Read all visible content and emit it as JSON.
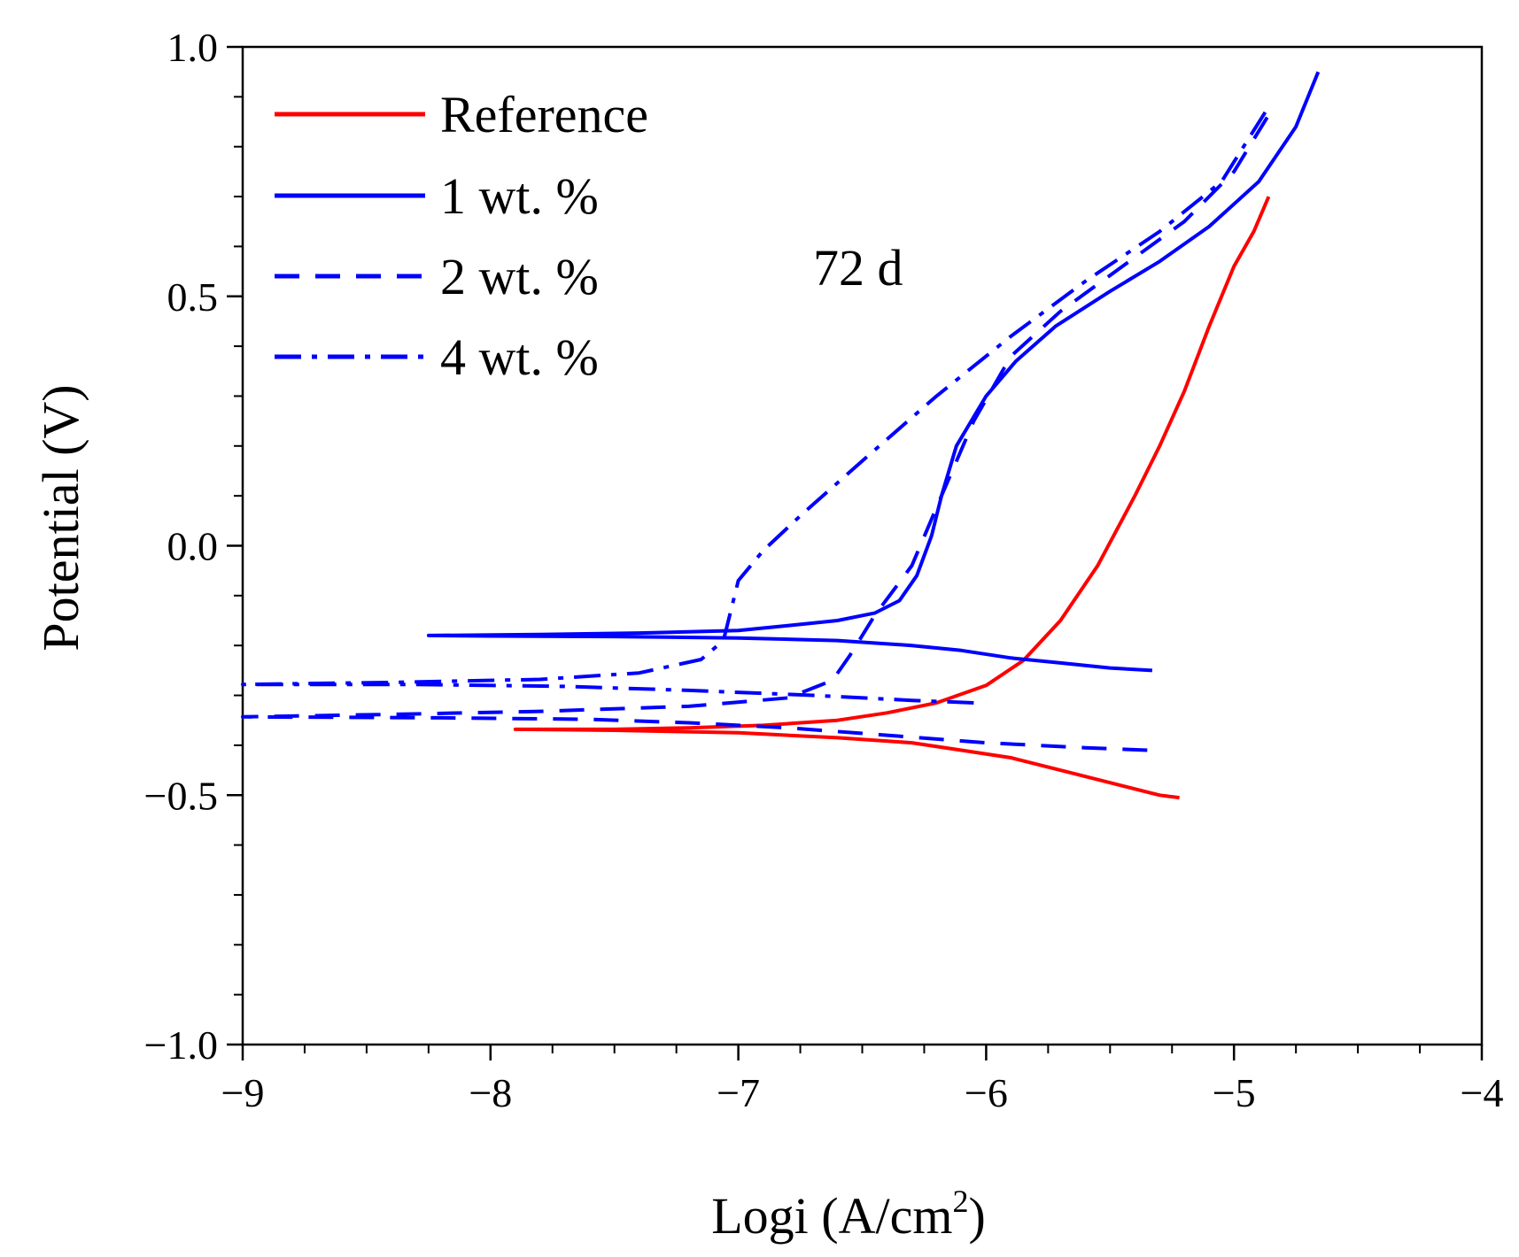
{
  "chart_data": {
    "type": "line",
    "title": "",
    "xlabel": "Logi (A/cm",
    "xlabel_superscript": "2",
    "xlabel_suffix": ")",
    "ylabel": "Potential (V)",
    "xlim": [
      -9,
      -4
    ],
    "ylim": [
      -1.0,
      1.0
    ],
    "x_ticks": [
      -9,
      -8,
      -7,
      -6,
      -5,
      -4
    ],
    "x_tick_labels": [
      "−9",
      "−8",
      "−7",
      "−6",
      "−5",
      "−4"
    ],
    "y_ticks": [
      -1.0,
      -0.5,
      0.0,
      0.5,
      1.0
    ],
    "y_tick_labels": [
      "−1.0",
      "−0.5",
      "0.0",
      "0.5",
      "1.0"
    ],
    "grid": false,
    "legend_position": "top-left",
    "annotation": "72 d",
    "series": [
      {
        "name": "Reference",
        "color": "#ff0000",
        "dash": "solid",
        "points": [
          [
            -5.22,
            -0.505
          ],
          [
            -5.3,
            -0.5
          ],
          [
            -5.5,
            -0.475
          ],
          [
            -5.7,
            -0.45
          ],
          [
            -5.9,
            -0.425
          ],
          [
            -6.1,
            -0.41
          ],
          [
            -6.3,
            -0.395
          ],
          [
            -6.6,
            -0.385
          ],
          [
            -7.0,
            -0.375
          ],
          [
            -7.5,
            -0.37
          ],
          [
            -7.9,
            -0.368
          ],
          [
            -7.5,
            -0.368
          ],
          [
            -7.2,
            -0.365
          ],
          [
            -6.9,
            -0.36
          ],
          [
            -6.6,
            -0.35
          ],
          [
            -6.4,
            -0.335
          ],
          [
            -6.2,
            -0.315
          ],
          [
            -6.0,
            -0.28
          ],
          [
            -5.85,
            -0.23
          ],
          [
            -5.7,
            -0.15
          ],
          [
            -5.55,
            -0.04
          ],
          [
            -5.4,
            0.1
          ],
          [
            -5.3,
            0.2
          ],
          [
            -5.2,
            0.31
          ],
          [
            -5.1,
            0.44
          ],
          [
            -5.0,
            0.56
          ],
          [
            -4.92,
            0.63
          ],
          [
            -4.86,
            0.7
          ]
        ]
      },
      {
        "name": "1 wt. %",
        "color": "#0000ff",
        "dash": "solid",
        "points": [
          [
            -5.33,
            -0.25
          ],
          [
            -5.5,
            -0.245
          ],
          [
            -5.7,
            -0.235
          ],
          [
            -5.9,
            -0.225
          ],
          [
            -6.1,
            -0.21
          ],
          [
            -6.3,
            -0.2
          ],
          [
            -6.6,
            -0.19
          ],
          [
            -7.0,
            -0.185
          ],
          [
            -7.5,
            -0.182
          ],
          [
            -8.0,
            -0.181
          ],
          [
            -8.25,
            -0.18
          ],
          [
            -7.8,
            -0.178
          ],
          [
            -7.4,
            -0.175
          ],
          [
            -7.0,
            -0.17
          ],
          [
            -6.8,
            -0.16
          ],
          [
            -6.6,
            -0.15
          ],
          [
            -6.45,
            -0.135
          ],
          [
            -6.35,
            -0.11
          ],
          [
            -6.28,
            -0.06
          ],
          [
            -6.22,
            0.02
          ],
          [
            -6.18,
            0.1
          ],
          [
            -6.12,
            0.2
          ],
          [
            -6.0,
            0.3
          ],
          [
            -5.88,
            0.37
          ],
          [
            -5.72,
            0.44
          ],
          [
            -5.5,
            0.51
          ],
          [
            -5.3,
            0.57
          ],
          [
            -5.1,
            0.64
          ],
          [
            -4.9,
            0.73
          ],
          [
            -4.75,
            0.84
          ],
          [
            -4.66,
            0.95
          ]
        ]
      },
      {
        "name": "2 wt. %",
        "color": "#0000ff",
        "dash": "28,18",
        "points": [
          [
            -5.35,
            -0.41
          ],
          [
            -5.6,
            -0.405
          ],
          [
            -6.0,
            -0.395
          ],
          [
            -6.4,
            -0.38
          ],
          [
            -6.8,
            -0.365
          ],
          [
            -7.2,
            -0.355
          ],
          [
            -7.6,
            -0.348
          ],
          [
            -8.2,
            -0.345
          ],
          [
            -9.0,
            -0.343
          ],
          [
            -8.4,
            -0.338
          ],
          [
            -7.8,
            -0.332
          ],
          [
            -7.2,
            -0.322
          ],
          [
            -6.8,
            -0.305
          ],
          [
            -6.62,
            -0.27
          ],
          [
            -6.55,
            -0.22
          ],
          [
            -6.45,
            -0.14
          ],
          [
            -6.3,
            -0.04
          ],
          [
            -6.18,
            0.1
          ],
          [
            -6.05,
            0.25
          ],
          [
            -5.9,
            0.38
          ],
          [
            -5.7,
            0.47
          ],
          [
            -5.45,
            0.56
          ],
          [
            -5.2,
            0.65
          ],
          [
            -5.0,
            0.75
          ],
          [
            -4.84,
            0.88
          ]
        ]
      },
      {
        "name": "4 wt. %",
        "color": "#0000ff",
        "dash": "30,12,6,12",
        "points": [
          [
            -6.05,
            -0.315
          ],
          [
            -6.3,
            -0.31
          ],
          [
            -6.7,
            -0.3
          ],
          [
            -7.2,
            -0.29
          ],
          [
            -7.7,
            -0.282
          ],
          [
            -8.3,
            -0.278
          ],
          [
            -9.0,
            -0.278
          ],
          [
            -8.4,
            -0.274
          ],
          [
            -7.8,
            -0.268
          ],
          [
            -7.4,
            -0.255
          ],
          [
            -7.15,
            -0.228
          ],
          [
            -7.06,
            -0.19
          ],
          [
            -7.03,
            -0.13
          ],
          [
            -7.0,
            -0.07
          ],
          [
            -6.9,
            -0.01
          ],
          [
            -6.75,
            0.06
          ],
          [
            -6.5,
            0.17
          ],
          [
            -6.2,
            0.3
          ],
          [
            -5.9,
            0.42
          ],
          [
            -5.6,
            0.53
          ],
          [
            -5.3,
            0.63
          ],
          [
            -5.05,
            0.73
          ],
          [
            -4.86,
            0.88
          ]
        ]
      }
    ]
  }
}
